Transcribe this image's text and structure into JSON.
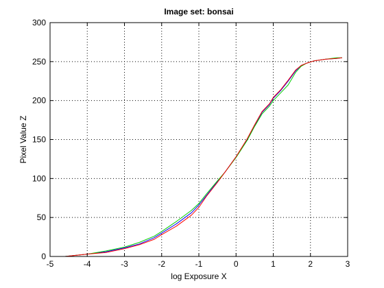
{
  "chart_data": {
    "type": "line",
    "title": "Image set: bonsai",
    "xlabel": "log Exposure X",
    "ylabel": "Pixel Value Z",
    "xlim": [
      -5,
      3
    ],
    "ylim": [
      0,
      300
    ],
    "xticks": [
      -5,
      -4,
      -3,
      -2,
      -1,
      0,
      1,
      2,
      3
    ],
    "yticks": [
      0,
      50,
      100,
      150,
      200,
      250,
      300
    ],
    "grid": true,
    "grid_style": "dotted",
    "legend": false,
    "series": [
      {
        "color": "#0000ff",
        "x": [
          -4.6,
          -4.4,
          -4.2,
          -4.0,
          -3.5,
          -3.0,
          -2.6,
          -2.2,
          -2.0,
          -1.6,
          -1.2,
          -1.0,
          -0.8,
          -0.5,
          -0.3,
          0.0,
          0.3,
          0.5,
          0.7,
          0.9,
          1.0,
          1.2,
          1.4,
          1.6,
          1.75,
          1.9,
          2.1,
          2.4,
          2.7,
          2.85
        ],
        "y": [
          0,
          1,
          2,
          3,
          6,
          11,
          16,
          24,
          30,
          42,
          56,
          66,
          78,
          96,
          108,
          128,
          150,
          168,
          185,
          195,
          203,
          213,
          225,
          238,
          245,
          248,
          251,
          253,
          254,
          255
        ]
      },
      {
        "color": "#00cc00",
        "x": [
          -4.6,
          -4.4,
          -4.2,
          -4.0,
          -3.5,
          -3.0,
          -2.6,
          -2.2,
          -2.0,
          -1.6,
          -1.2,
          -1.0,
          -0.8,
          -0.5,
          -0.3,
          0.0,
          0.3,
          0.5,
          0.7,
          0.9,
          1.0,
          1.2,
          1.4,
          1.6,
          1.75,
          1.9,
          2.1,
          2.4,
          2.7,
          2.85
        ],
        "y": [
          0,
          1,
          2,
          3,
          7,
          12,
          18,
          26,
          32,
          45,
          59,
          68,
          80,
          97,
          108,
          127,
          149,
          167,
          183,
          193,
          200,
          210,
          220,
          236,
          244,
          248,
          251,
          253,
          255,
          255
        ]
      },
      {
        "color": "#ff0000",
        "x": [
          -4.6,
          -4.4,
          -4.2,
          -4.0,
          -3.5,
          -3.0,
          -2.6,
          -2.2,
          -2.0,
          -1.6,
          -1.2,
          -1.0,
          -0.8,
          -0.5,
          -0.3,
          0.0,
          0.3,
          0.5,
          0.7,
          0.9,
          1.0,
          1.2,
          1.4,
          1.6,
          1.75,
          1.9,
          2.1,
          2.4,
          2.7,
          2.85
        ],
        "y": [
          0,
          1,
          2,
          3,
          5,
          10,
          15,
          22,
          28,
          39,
          53,
          63,
          77,
          95,
          108,
          128,
          151,
          169,
          186,
          196,
          204,
          214,
          226,
          239,
          245,
          248,
          251,
          253,
          254,
          255
        ]
      }
    ]
  }
}
